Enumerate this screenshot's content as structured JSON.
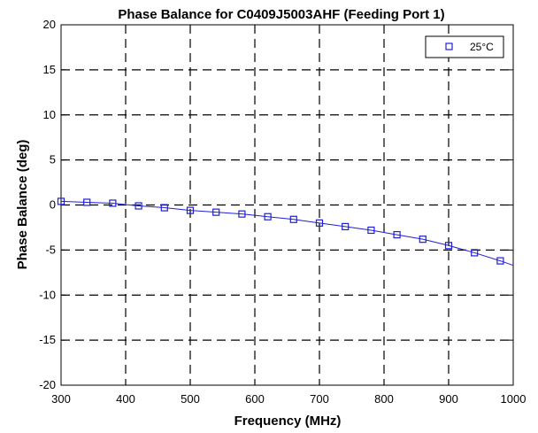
{
  "chart_data": {
    "type": "line",
    "title": "Phase Balance for C0409J5003AHF (Feeding Port 1)",
    "xlabel": "Frequency (MHz)",
    "ylabel": "Phase Balance (deg)",
    "xlim": [
      300,
      1000
    ],
    "ylim": [
      -20,
      20
    ],
    "x_ticks": [
      300,
      400,
      500,
      600,
      700,
      800,
      900,
      1000
    ],
    "y_ticks": [
      -20,
      -15,
      -10,
      -5,
      0,
      5,
      10,
      15,
      20
    ],
    "grid": true,
    "legend_position": "top-right",
    "series": [
      {
        "name": "25°C",
        "color": "#1f1fd6",
        "marker": "square",
        "x": [
          300,
          340,
          380,
          420,
          460,
          500,
          540,
          580,
          620,
          660,
          700,
          740,
          780,
          820,
          860,
          900,
          940,
          980
        ],
        "values": [
          0.4,
          0.3,
          0.2,
          -0.1,
          -0.3,
          -0.6,
          -0.8,
          -1.0,
          -1.3,
          -1.6,
          -2.0,
          -2.4,
          -2.8,
          -3.3,
          -3.8,
          -4.5,
          -5.3,
          -6.2
        ],
        "line_x": [
          300,
          340,
          380,
          420,
          460,
          500,
          540,
          580,
          620,
          660,
          700,
          740,
          780,
          820,
          860,
          900,
          940,
          980,
          1000
        ],
        "line_values": [
          0.4,
          0.3,
          0.2,
          -0.1,
          -0.3,
          -0.6,
          -0.8,
          -1.0,
          -1.3,
          -1.6,
          -2.0,
          -2.4,
          -2.8,
          -3.3,
          -3.8,
          -4.5,
          -5.3,
          -6.2,
          -6.7
        ]
      }
    ]
  }
}
